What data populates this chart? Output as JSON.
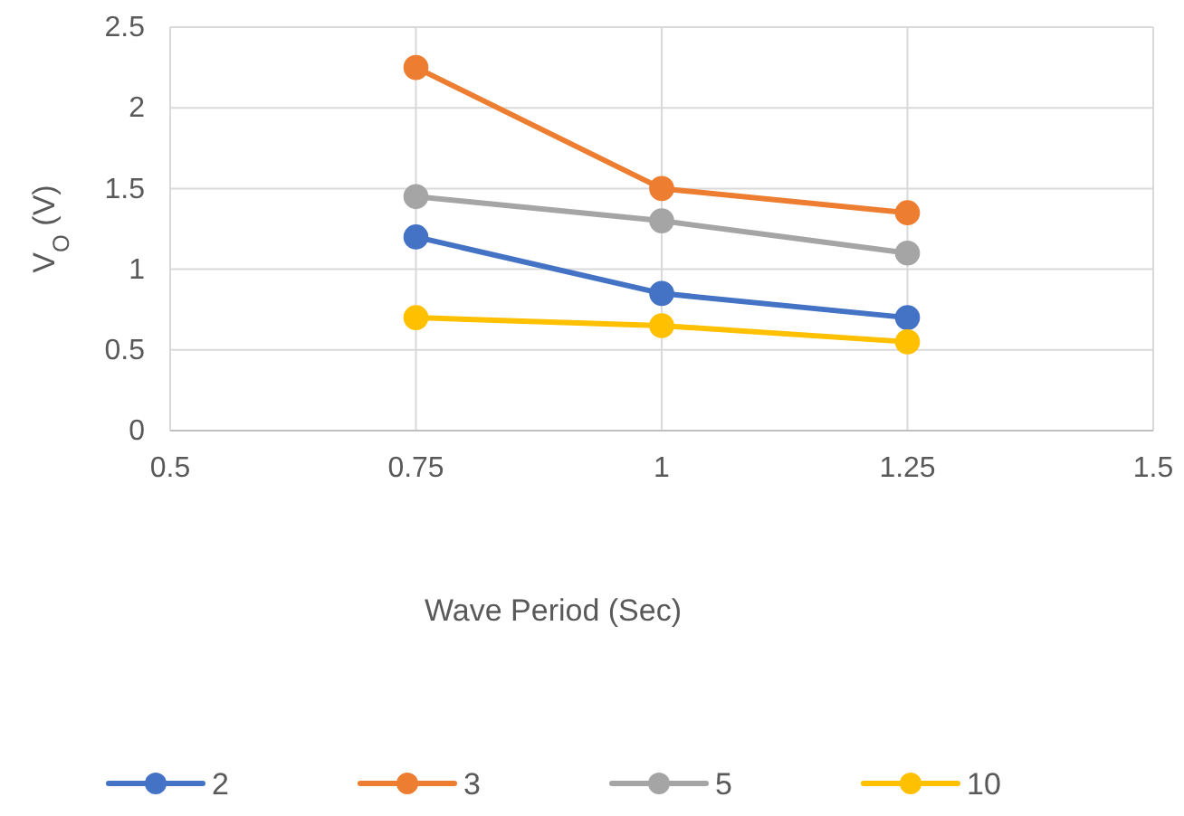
{
  "chart_data": {
    "type": "line",
    "xlabel": "Wave Period (Sec)",
    "ylabel": "V$_{O}$ (V)",
    "x": [
      0.75,
      1,
      1.25
    ],
    "series": [
      {
        "name": "2",
        "color": "#4472c4",
        "values": [
          1.2,
          0.85,
          0.7
        ]
      },
      {
        "name": "3",
        "color": "#ed7d31",
        "values": [
          2.25,
          1.5,
          1.35
        ]
      },
      {
        "name": "5",
        "color": "#a5a5a5",
        "values": [
          1.45,
          1.3,
          1.1
        ]
      },
      {
        "name": "10",
        "color": "#ffc000",
        "values": [
          0.7,
          0.65,
          0.55
        ]
      }
    ],
    "xlim": [
      0.5,
      1.5
    ],
    "xticks": [
      0.5,
      0.75,
      1,
      1.25,
      1.5
    ],
    "ylim": [
      0,
      2.5
    ],
    "yticks": [
      0,
      0.5,
      1,
      1.5,
      2,
      2.5
    ],
    "grid": true,
    "legend": "bottom",
    "marker": "circle",
    "line_style": "solid"
  }
}
